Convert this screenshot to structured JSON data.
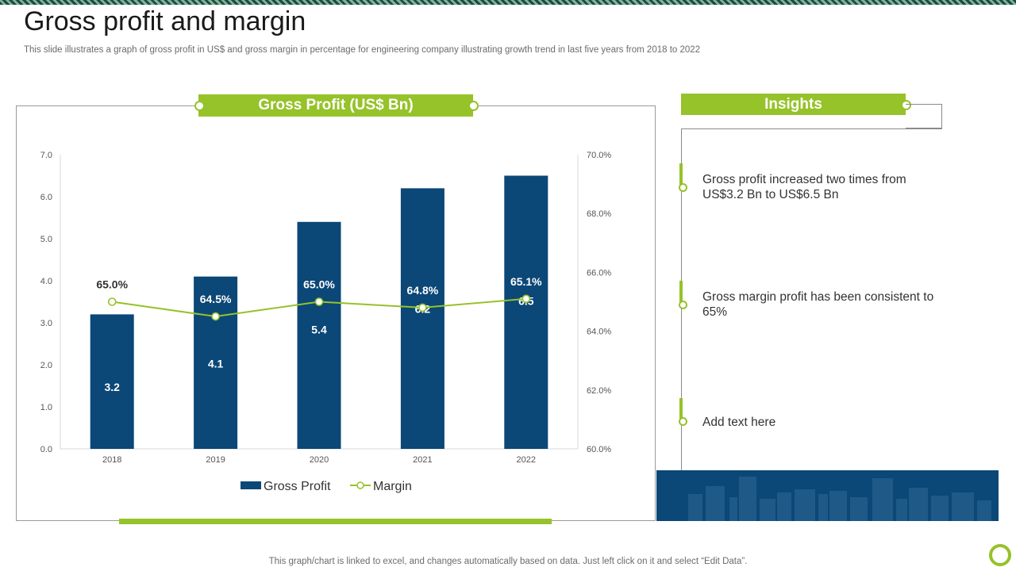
{
  "page": {
    "title": "Gross profit and margin",
    "subtitle": "This slide illustrates a graph of gross profit in US$ and gross margin in percentage for engineering company illustrating growth trend in last five years from 2018 to 2022",
    "footer": "This graph/chart is linked to excel,  and changes automatically based on data. Just left click on it and select “Edit Data”."
  },
  "chart_banner": "Gross Profit (US$ Bn)",
  "insights": {
    "title": "Insights",
    "items": [
      "Gross profit increased two times from US$3.2 Bn to US$6.5 Bn",
      "Gross margin profit has been consistent to 65%",
      "Add text here"
    ]
  },
  "colors": {
    "accent": "#96c22a",
    "bar": "#0b4777"
  },
  "chart_data": {
    "type": "bar",
    "title": "Gross Profit (US$ Bn)",
    "categories": [
      "2018",
      "2019",
      "2020",
      "2021",
      "2022"
    ],
    "series": [
      {
        "name": "Gross Profit",
        "type": "bar",
        "axis": "left",
        "values": [
          3.2,
          4.1,
          5.4,
          6.2,
          6.5
        ],
        "labels": [
          "3.2",
          "4.1",
          "5.4",
          "6.2",
          "6.5"
        ]
      },
      {
        "name": "Margin",
        "type": "line",
        "axis": "right",
        "values": [
          65.0,
          64.5,
          65.0,
          64.8,
          65.1
        ],
        "labels": [
          "65.0%",
          "64.5%",
          "65.0%",
          "64.8%",
          "65.1%"
        ]
      }
    ],
    "y_left": {
      "min": 0,
      "max": 7,
      "ticks": [
        "0.0",
        "1.0",
        "2.0",
        "3.0",
        "4.0",
        "5.0",
        "6.0",
        "7.0"
      ]
    },
    "y_right": {
      "min": 60,
      "max": 70,
      "ticks": [
        "60.0%",
        "62.0%",
        "64.0%",
        "66.0%",
        "68.0%",
        "70.0%"
      ]
    },
    "legend": [
      "Gross Profit",
      "Margin"
    ],
    "legend_position": "bottom",
    "grid": false
  }
}
